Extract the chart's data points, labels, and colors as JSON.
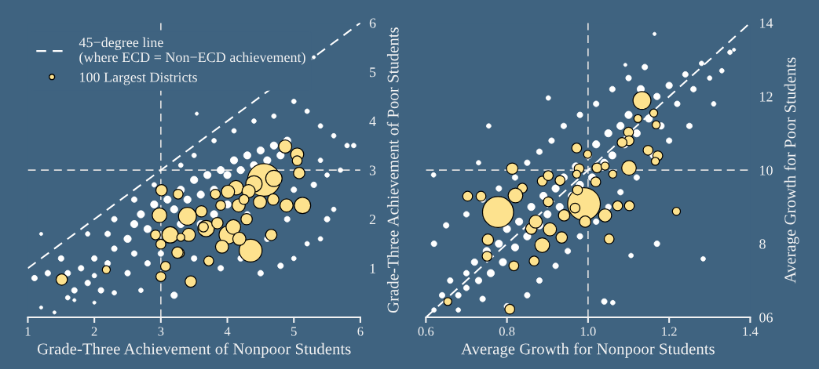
{
  "chart_data": [
    {
      "type": "bubble",
      "xlabel": "Grade-Three Achievement of Nonpoor Students",
      "ylabel": "Grade-Three Achievement of Poor Students",
      "xlim": [
        1,
        6
      ],
      "ylim": [
        0,
        6
      ],
      "xticks": [
        1,
        2,
        3,
        4,
        5,
        6
      ],
      "yticks": [
        1,
        2,
        3,
        4,
        5,
        6
      ],
      "legend": "top left",
      "ref_lines": [
        {
          "axis": "x",
          "value": 3,
          "color": "#dddddd",
          "line_style": "dashed"
        },
        {
          "axis": "y",
          "value": 3,
          "color": "#dddddd",
          "line_style": "dashed"
        }
      ],
      "series": [
        {
          "color": "#ffffff",
          "x": [
            2.5,
            2.6,
            2.7,
            2.8,
            2.9,
            3.1,
            3.2,
            3.3,
            3.4,
            3.5,
            3.6,
            3.7,
            3.8,
            3.9,
            4.0,
            4.1,
            4.2,
            4.3,
            4.4,
            4.5,
            4.6,
            4.7,
            4.8,
            4.9,
            3.6,
            3.8,
            4.0,
            3.3,
            2.3,
            2.2,
            2.0,
            1.8,
            1.6,
            1.5,
            1.3,
            1.1,
            1.2,
            1.4,
            1.7,
            2.0,
            2.3,
            2.7,
            1.9,
            1.7,
            2.1,
            3.2,
            2.5,
            2.8,
            3.5,
            3.9,
            4.2,
            4.5,
            4.8,
            5.0,
            5.2,
            5.4,
            5.5,
            5.6,
            5.3,
            5.5,
            5.7,
            5.8,
            5.6,
            5.4,
            5.2,
            5.0,
            4.7,
            4.4,
            4.1,
            3.8,
            3.5,
            3.3,
            2.9,
            2.6,
            2.3,
            1.9,
            2.2,
            1.2,
            5.3,
            3.54,
            4.9,
            5.0,
            4.6,
            4.3,
            3.0,
            2.6,
            5.9,
            5.4,
            2.0,
            1.6
          ],
          "values": [
            1.6,
            1.9,
            2.1,
            1.8,
            2.3,
            2.4,
            2.2,
            2.6,
            2.4,
            2.8,
            2.5,
            2.9,
            2.6,
            3.0,
            2.9,
            3.2,
            3.0,
            3.3,
            3.1,
            3.4,
            3.2,
            3.5,
            3.3,
            3.6,
            1.9,
            2.1,
            2.3,
            1.9,
            1.4,
            1.1,
            1.2,
            1.0,
            0.9,
            1.2,
            0.9,
            0.8,
            0.2,
            0.1,
            0.35,
            0.3,
            0.5,
            0.55,
            0.7,
            0.55,
            0.55,
            0.45,
            0.9,
            1.1,
            1.2,
            1.0,
            1.2,
            0.9,
            1.05,
            1.2,
            1.5,
            1.6,
            2.0,
            2.2,
            2.7,
            2.9,
            3.0,
            3.5,
            3.7,
            3.9,
            4.2,
            4.4,
            4.1,
            4.0,
            3.8,
            3.6,
            3.3,
            3.1,
            2.7,
            2.4,
            2.0,
            1.7,
            1.7,
            1.7,
            5.3,
            4.15,
            2.0,
            2.6,
            1.6,
            2.1,
            1.3,
            1.3,
            3.5,
            3.2,
            0.85,
            0.4
          ],
          "sizes": [
            0.05,
            0.05,
            0.05,
            0.05,
            0.05,
            0.05,
            0.05,
            0.05,
            0.05,
            0.05,
            0.05,
            0.05,
            0.05,
            0.05,
            0.05,
            0.05,
            0.05,
            0.05,
            0.05,
            0.05,
            0.05,
            0.05,
            0.05,
            0.05,
            0.05,
            0.05,
            0.05,
            0.05,
            0.03,
            0.03,
            0.03,
            0.03,
            0.03,
            0.03,
            0.03,
            0.03,
            0.01,
            0.01,
            0.01,
            0.01,
            0.02,
            0.02,
            0.03,
            0.03,
            0.03,
            0.04,
            0.03,
            0.03,
            0.03,
            0.03,
            0.03,
            0.03,
            0.03,
            0.02,
            0.02,
            0.02,
            0.03,
            0.02,
            0.03,
            0.02,
            0.02,
            0.02,
            0.02,
            0.02,
            0.02,
            0.02,
            0.02,
            0.02,
            0.02,
            0.02,
            0.02,
            0.02,
            0.02,
            0.03,
            0.03,
            0.02,
            0.03,
            0.01,
            0.01,
            0.01,
            0.03,
            0.03,
            0.03,
            0.03,
            0.03,
            0.03,
            0.02,
            0.02,
            0.02,
            0.02
          ]
        },
        {
          "type": "line",
          "name": "45−degree line\n(where ECD = Non−ECD achievement)",
          "color": "#ffffff",
          "line_style": "dashed",
          "x": [
            1,
            6
          ],
          "values": [
            1,
            6
          ]
        },
        {
          "name": "100 Largest Districts",
          "color": "#fde28e",
          "x": [
            4.87,
            5.05,
            5.05,
            5.08,
            4.55,
            4.7,
            4.4,
            4.13,
            4.01,
            4.17,
            3.9,
            4.89,
            5.13,
            3.01,
            3.26,
            2.98,
            3.4,
            3.61,
            3.42,
            3.14,
            2.92,
            3.68,
            4.01,
            4.35,
            3.92,
            4.09,
            4.29,
            4.66,
            4.18,
            3.0,
            3.28,
            3.07,
            3.0,
            3.45,
            3.72,
            2.18,
            1.51,
            3.3,
            3.85,
            4.49,
            4.69,
            3.25,
            3.64,
            4.32,
            4.25,
            3.82
          ],
          "values": [
            3.48,
            3.32,
            3.19,
            2.94,
            2.8,
            2.83,
            2.72,
            2.64,
            2.56,
            2.28,
            2.28,
            2.28,
            2.28,
            2.59,
            2.51,
            2.08,
            2.06,
            2.16,
            1.68,
            1.68,
            1.68,
            1.81,
            1.68,
            1.36,
            1.44,
            1.84,
            2.0,
            1.68,
            1.6,
            1.49,
            1.31,
            1.04,
            0.83,
            0.73,
            1.15,
            0.97,
            0.77,
            1.63,
            1.92,
            2.35,
            2.4,
            1.32,
            1.84,
            2.57,
            2.4,
            2.51
          ],
          "sizes": [
            0.16,
            0.16,
            0.09,
            0.12,
            1,
            0.25,
            0.25,
            0.2,
            0.16,
            0.16,
            0.09,
            0.16,
            0.25,
            0.12,
            0.09,
            0.2,
            0.3,
            0.12,
            0.16,
            0.25,
            0.09,
            0.25,
            0.3,
            0.49,
            0.16,
            0.2,
            0.12,
            0.12,
            0.16,
            0.09,
            0.09,
            0.09,
            0.09,
            0.12,
            0.09,
            0.06,
            0.12,
            0.06,
            0.12,
            0.16,
            0.12,
            0.12,
            0.09,
            0.16,
            0.09,
            0.09
          ]
        }
      ]
    },
    {
      "type": "bubble",
      "xlabel": "Average Growth for Nonpoor Students",
      "ylabel": "Average Growth for Poor Students",
      "xlim": [
        0.6,
        1.4
      ],
      "ylim": [
        6,
        14
      ],
      "xticks": [
        {
          "value": 0.6,
          "label": "0.6"
        },
        {
          "value": 0.8,
          "label": "0.8"
        },
        {
          "value": 1.0,
          "label": "1.0"
        },
        {
          "value": 1.2,
          "label": "1.2"
        },
        {
          "value": 1.4,
          "label": "1.4"
        }
      ],
      "yticks": [
        {
          "value": 6,
          "label": "06"
        },
        8,
        10,
        12,
        14
      ],
      "ref_lines": [
        {
          "axis": "x",
          "value": 1.0,
          "color": "#dddddd",
          "line_style": "dashed"
        },
        {
          "axis": "y",
          "value": 10,
          "color": "#dddddd",
          "line_style": "dashed"
        }
      ],
      "series": [
        {
          "color": "#ffffff",
          "x": [
            0.62,
            0.64,
            0.66,
            0.68,
            0.7,
            0.7,
            0.72,
            0.73,
            0.75,
            0.76,
            0.78,
            0.79,
            0.8,
            0.82,
            0.83,
            0.85,
            0.86,
            0.88,
            0.89,
            0.9,
            0.92,
            0.93,
            0.94,
            0.96,
            0.97,
            0.98,
            1.0,
            1.01,
            1.02,
            1.04,
            1.05,
            1.06,
            1.08,
            1.09,
            1.1,
            1.12,
            1.13,
            1.15,
            1.17,
            1.18,
            1.2,
            1.22,
            1.24,
            1.26,
            1.28,
            1.3,
            1.33,
            1.35,
            1.31,
            1.25,
            1.2,
            1.16,
            1.12,
            1.08,
            1.05,
            1.02,
            0.98,
            0.95,
            0.92,
            0.88,
            0.85,
            0.8,
            0.74,
            0.68,
            0.62,
            0.65,
            0.7,
            0.74,
            0.78,
            0.82,
            0.85,
            0.88,
            0.91,
            0.94,
            0.98,
            1.02,
            1.06,
            1.1,
            1.14,
            0.902,
            0.755,
            0.619,
            1.106,
            1.284,
            1.04,
            1.061,
            1.17,
            1.36,
            1.164,
            1.092,
            0.73
          ],
          "values": [
            6.2,
            6.6,
            7.0,
            6.6,
            7.2,
            6.8,
            7.5,
            7.0,
            7.8,
            7.2,
            8.0,
            7.5,
            8.4,
            7.9,
            8.6,
            8.2,
            9.0,
            8.5,
            9.3,
            8.8,
            9.5,
            9.0,
            9.8,
            9.3,
            10.1,
            9.6,
            10.4,
            9.8,
            10.7,
            10.2,
            11.0,
            10.4,
            11.2,
            10.7,
            11.5,
            11.0,
            12.2,
            11.4,
            12.0,
            11.2,
            12.3,
            11.8,
            12.6,
            12.2,
            12.9,
            12.5,
            12.7,
            13.2,
            11.8,
            11.2,
            10.8,
            10.4,
            9.8,
            9.4,
            9.0,
            8.6,
            8.2,
            7.8,
            7.4,
            7.0,
            6.6,
            6.3,
            6.5,
            6.2,
            8.0,
            8.5,
            8.8,
            9.2,
            9.5,
            9.8,
            10.2,
            10.5,
            10.8,
            11.2,
            11.5,
            11.8,
            12.2,
            12.5,
            12.8,
            11.96,
            11.2,
            9.87,
            7.68,
            7.59,
            6.43,
            6.4,
            8.0,
            13.27,
            13.7,
            12.86,
            10.2
          ],
          "sizes": [
            0.02,
            0.03,
            0.03,
            0.03,
            0.03,
            0.03,
            0.04,
            0.04,
            0.05,
            0.05,
            0.05,
            0.05,
            0.05,
            0.05,
            0.05,
            0.05,
            0.05,
            0.05,
            0.05,
            0.05,
            0.05,
            0.05,
            0.05,
            0.05,
            0.05,
            0.05,
            0.05,
            0.05,
            0.05,
            0.05,
            0.05,
            0.05,
            0.05,
            0.05,
            0.05,
            0.05,
            0.05,
            0.05,
            0.04,
            0.04,
            0.04,
            0.03,
            0.03,
            0.03,
            0.02,
            0.02,
            0.02,
            0.02,
            0.02,
            0.03,
            0.03,
            0.03,
            0.03,
            0.03,
            0.03,
            0.03,
            0.03,
            0.03,
            0.03,
            0.03,
            0.03,
            0.03,
            0.03,
            0.02,
            0.03,
            0.03,
            0.03,
            0.03,
            0.03,
            0.03,
            0.03,
            0.03,
            0.03,
            0.03,
            0.03,
            0.03,
            0.03,
            0.03,
            0.03,
            0.02,
            0.02,
            0.02,
            0.02,
            0.02,
            0.03,
            0.02,
            0.03,
            0.01,
            0.01,
            0.01,
            0.02
          ]
        },
        {
          "type": "line",
          "color": "#ffffff",
          "line_style": "dashed",
          "x": [
            0.6,
            1.4
          ],
          "values": [
            6,
            14
          ]
        },
        {
          "color": "#fde28e",
          "x": [
            1.133,
            1.162,
            1.168,
            1.123,
            1.1,
            1.101,
            1.101,
            1.084,
            1.148,
            1.172,
            1.166,
            0.972,
            0.999,
            0.813,
            0.887,
            0.838,
            0.978,
            1.022,
            1.061,
            0.972,
            1.042,
            0.736,
            0.821,
            0.703,
            0.778,
            0.753,
            0.751,
            0.817,
            0.867,
            0.654,
            0.807,
            0.86,
            0.99,
            1.042,
            1.073,
            1.102,
            1.052,
            1.218,
            0.931,
            0.902,
            0.871,
            0.906,
            0.887,
            0.935,
            0.974,
            1.019,
            0.993,
            0.941,
            0.902,
            0.968
          ],
          "values": [
            11.89,
            11.55,
            11.23,
            11.4,
            11.03,
            10.8,
            10.06,
            10.75,
            10.54,
            10.39,
            10.24,
            10.6,
            10.43,
            10.04,
            9.7,
            9.51,
            10.04,
            10.06,
            9.89,
            9.89,
            10.11,
            9.29,
            9.31,
            9.29,
            8.86,
            8.11,
            7.66,
            7.4,
            7.53,
            6.43,
            6.22,
            8.41,
            9.08,
            8.77,
            9.03,
            9.03,
            8.13,
            8.88,
            9.72,
            9.14,
            8.6,
            8.39,
            7.96,
            8.17,
            9.46,
            9.68,
            8.6,
            8.77,
            9.85,
            8.97
          ],
          "sizes": [
            0.3,
            0.06,
            0.06,
            0.06,
            0.09,
            0.09,
            0.2,
            0.09,
            0.09,
            0.09,
            0.06,
            0.09,
            0.06,
            0.12,
            0.09,
            0.09,
            0.09,
            0.09,
            0.06,
            0.06,
            0.06,
            0.09,
            0.2,
            0.09,
            0.9,
            0.12,
            0.09,
            0.09,
            0.09,
            0.06,
            0.09,
            0.12,
            1,
            0.16,
            0.09,
            0.09,
            0.09,
            0.06,
            0.09,
            0.09,
            0.16,
            0.16,
            0.2,
            0.12,
            0.09,
            0.09,
            0.12,
            0.12,
            0.09,
            0.09
          ]
        }
      ]
    }
  ]
}
